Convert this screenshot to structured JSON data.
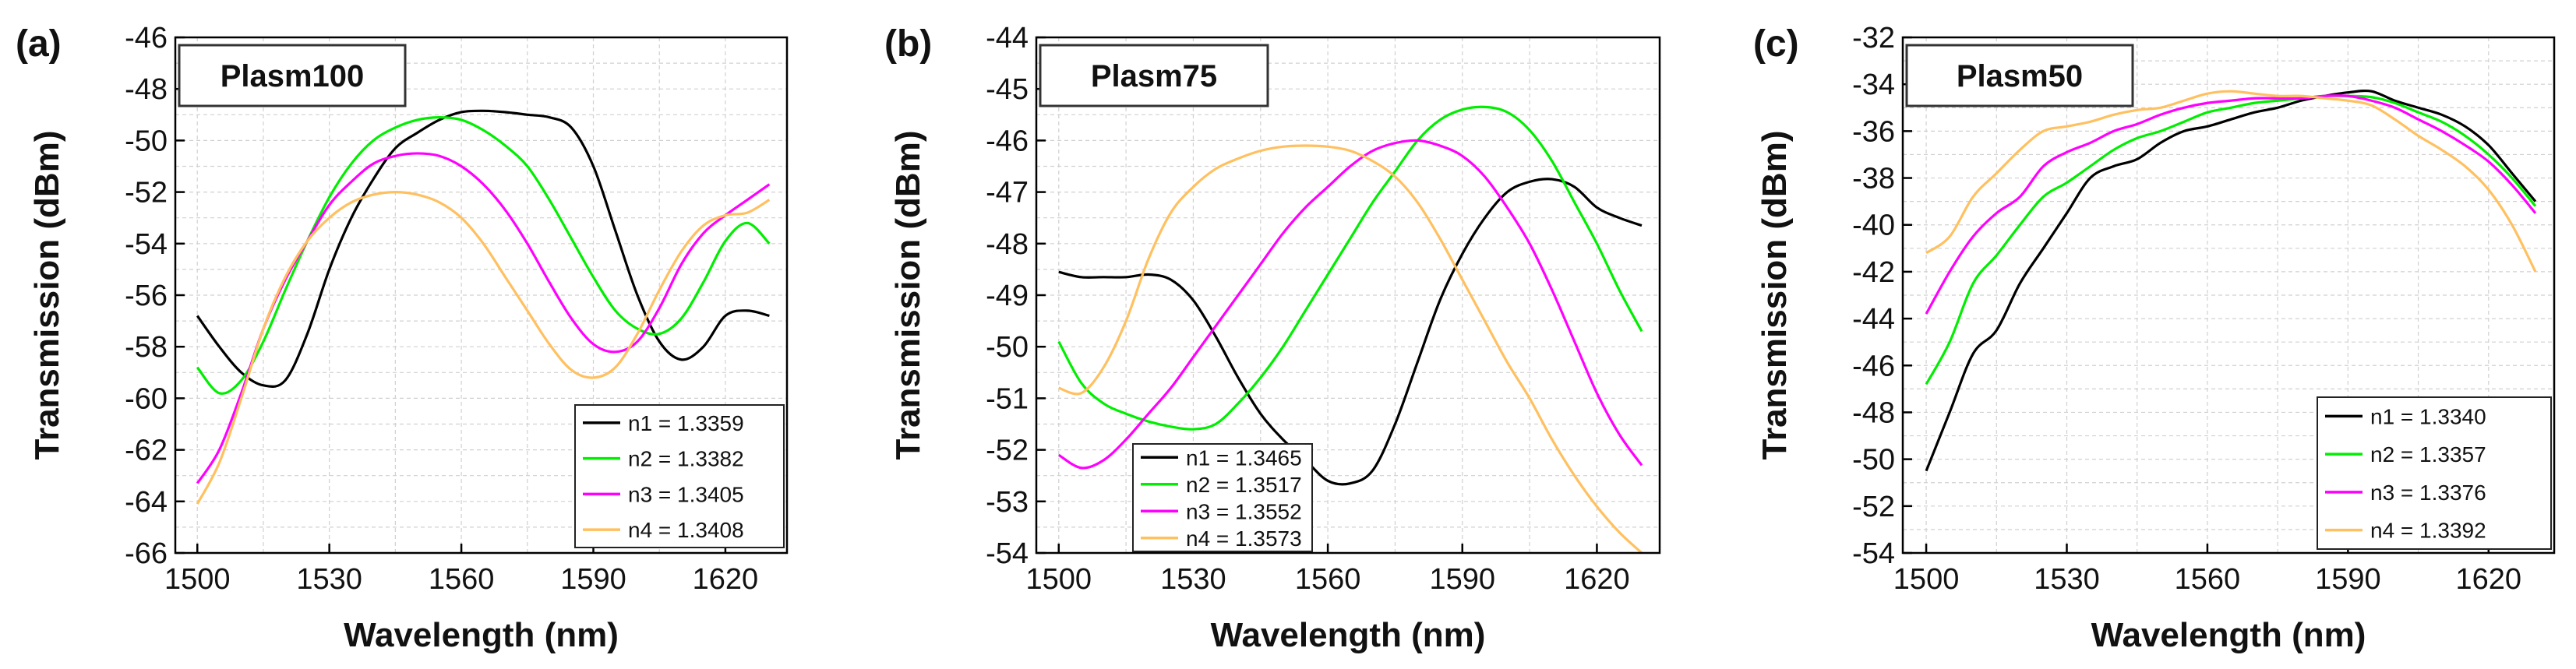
{
  "figure": {
    "panel_count": 3
  },
  "chart_data": [
    {
      "type": "line",
      "panel_label": "(a)",
      "title": "Plasm100",
      "xlabel": "Wavelength (nm)",
      "ylabel": "Transmission (dBm)",
      "xlim": [
        1495,
        1634
      ],
      "ylim": [
        -66,
        -46
      ],
      "xticks": [
        1500,
        1530,
        1560,
        1590,
        1620
      ],
      "yticks": [
        -66,
        -64,
        -62,
        -60,
        -58,
        -56,
        -54,
        -52,
        -50,
        -48,
        -46
      ],
      "legend_position": "bottom-right",
      "series": [
        {
          "name": "n1 = 1.3359",
          "color": "#000000",
          "x": [
            1500,
            1505,
            1510,
            1515,
            1520,
            1525,
            1530,
            1535,
            1540,
            1545,
            1550,
            1555,
            1560,
            1565,
            1570,
            1575,
            1580,
            1585,
            1590,
            1595,
            1600,
            1605,
            1610,
            1615,
            1620,
            1625,
            1630
          ],
          "y": [
            -56.8,
            -58.0,
            -59.0,
            -59.5,
            -59.3,
            -57.5,
            -55.0,
            -53.0,
            -51.5,
            -50.3,
            -49.7,
            -49.2,
            -48.9,
            -48.85,
            -48.9,
            -49.0,
            -49.1,
            -49.5,
            -51.0,
            -53.5,
            -56.0,
            -57.8,
            -58.5,
            -58.0,
            -56.8,
            -56.6,
            -56.8
          ]
        },
        {
          "name": "n2 = 1.3382",
          "color": "#00ee00",
          "x": [
            1500,
            1505,
            1510,
            1515,
            1520,
            1525,
            1530,
            1535,
            1540,
            1545,
            1550,
            1555,
            1560,
            1565,
            1570,
            1575,
            1580,
            1585,
            1590,
            1595,
            1600,
            1605,
            1610,
            1615,
            1620,
            1625,
            1630
          ],
          "y": [
            -58.8,
            -59.8,
            -59.3,
            -57.8,
            -55.8,
            -53.9,
            -52.2,
            -50.9,
            -50.0,
            -49.5,
            -49.2,
            -49.1,
            -49.2,
            -49.6,
            -50.2,
            -51.0,
            -52.3,
            -53.8,
            -55.3,
            -56.6,
            -57.3,
            -57.5,
            -56.9,
            -55.5,
            -53.9,
            -53.2,
            -54.0
          ]
        },
        {
          "name": "n3 = 1.3405",
          "color": "#ff00ff",
          "x": [
            1500,
            1505,
            1510,
            1515,
            1520,
            1525,
            1530,
            1535,
            1540,
            1545,
            1550,
            1555,
            1560,
            1565,
            1570,
            1575,
            1580,
            1585,
            1590,
            1595,
            1600,
            1605,
            1610,
            1615,
            1620,
            1625,
            1630
          ],
          "y": [
            -63.3,
            -62.0,
            -59.8,
            -57.3,
            -55.4,
            -53.9,
            -52.5,
            -51.6,
            -50.9,
            -50.6,
            -50.5,
            -50.6,
            -51.0,
            -51.7,
            -52.7,
            -54.0,
            -55.5,
            -56.9,
            -57.9,
            -58.2,
            -57.8,
            -56.5,
            -54.8,
            -53.6,
            -52.9,
            -52.3,
            -51.7
          ]
        },
        {
          "name": "n4 = 1.3408",
          "color": "#ffc060",
          "x": [
            1500,
            1505,
            1510,
            1515,
            1520,
            1525,
            1530,
            1535,
            1540,
            1545,
            1550,
            1555,
            1560,
            1565,
            1570,
            1575,
            1580,
            1585,
            1590,
            1595,
            1600,
            1605,
            1610,
            1615,
            1620,
            1625,
            1630
          ],
          "y": [
            -64.1,
            -62.5,
            -60.0,
            -57.3,
            -55.3,
            -53.9,
            -53.0,
            -52.4,
            -52.1,
            -52.0,
            -52.1,
            -52.4,
            -53.0,
            -54.0,
            -55.3,
            -56.6,
            -57.9,
            -58.9,
            -59.2,
            -58.8,
            -57.5,
            -55.8,
            -54.3,
            -53.3,
            -52.9,
            -52.8,
            -52.3
          ]
        }
      ]
    },
    {
      "type": "line",
      "panel_label": "(b)",
      "title": "Plasm75",
      "xlabel": "Wavelength (nm)",
      "ylabel": "Transmission (dBm)",
      "xlim": [
        1495,
        1634
      ],
      "ylim": [
        -54,
        -44
      ],
      "xticks": [
        1500,
        1530,
        1560,
        1590,
        1620
      ],
      "yticks": [
        -54,
        -53,
        -52,
        -51,
        -50,
        -49,
        -48,
        -47,
        -46,
        -45,
        -44
      ],
      "legend_position": "bottom-left",
      "series": [
        {
          "name": "n1 = 1.3465",
          "color": "#000000",
          "x": [
            1500,
            1505,
            1510,
            1515,
            1520,
            1525,
            1530,
            1535,
            1540,
            1545,
            1550,
            1555,
            1560,
            1565,
            1570,
            1575,
            1580,
            1585,
            1590,
            1595,
            1600,
            1605,
            1610,
            1615,
            1620,
            1625,
            1630
          ],
          "y": [
            -48.55,
            -48.65,
            -48.65,
            -48.65,
            -48.6,
            -48.7,
            -49.1,
            -49.8,
            -50.6,
            -51.3,
            -51.8,
            -52.2,
            -52.6,
            -52.65,
            -52.4,
            -51.5,
            -50.3,
            -49.1,
            -48.2,
            -47.5,
            -47.0,
            -46.8,
            -46.75,
            -46.9,
            -47.3,
            -47.5,
            -47.65
          ]
        },
        {
          "name": "n2 = 1.3517",
          "color": "#00ee00",
          "x": [
            1500,
            1505,
            1510,
            1515,
            1520,
            1525,
            1530,
            1535,
            1540,
            1545,
            1550,
            1555,
            1560,
            1565,
            1570,
            1575,
            1580,
            1585,
            1590,
            1595,
            1600,
            1605,
            1610,
            1615,
            1620,
            1625,
            1630
          ],
          "y": [
            -49.9,
            -50.7,
            -51.1,
            -51.3,
            -51.45,
            -51.55,
            -51.6,
            -51.5,
            -51.1,
            -50.6,
            -50.0,
            -49.3,
            -48.6,
            -47.9,
            -47.2,
            -46.6,
            -46.0,
            -45.6,
            -45.4,
            -45.35,
            -45.45,
            -45.8,
            -46.4,
            -47.2,
            -48.0,
            -48.9,
            -49.7
          ]
        },
        {
          "name": "n3 = 1.3552",
          "color": "#ff00ff",
          "x": [
            1500,
            1505,
            1510,
            1515,
            1520,
            1525,
            1530,
            1535,
            1540,
            1545,
            1550,
            1555,
            1560,
            1565,
            1570,
            1575,
            1580,
            1585,
            1590,
            1595,
            1600,
            1605,
            1610,
            1615,
            1620,
            1625,
            1630
          ],
          "y": [
            -52.1,
            -52.35,
            -52.2,
            -51.8,
            -51.3,
            -50.8,
            -50.2,
            -49.6,
            -49.0,
            -48.4,
            -47.8,
            -47.3,
            -46.9,
            -46.5,
            -46.2,
            -46.05,
            -46.0,
            -46.1,
            -46.3,
            -46.7,
            -47.3,
            -48.0,
            -48.9,
            -49.9,
            -50.9,
            -51.7,
            -52.3
          ]
        },
        {
          "name": "n4 = 1.3573",
          "color": "#ffc060",
          "x": [
            1500,
            1505,
            1510,
            1515,
            1520,
            1525,
            1530,
            1535,
            1540,
            1545,
            1550,
            1555,
            1560,
            1565,
            1570,
            1575,
            1580,
            1585,
            1590,
            1595,
            1600,
            1605,
            1610,
            1615,
            1620,
            1625,
            1630
          ],
          "y": [
            -50.8,
            -50.9,
            -50.4,
            -49.5,
            -48.3,
            -47.4,
            -46.9,
            -46.55,
            -46.35,
            -46.2,
            -46.12,
            -46.1,
            -46.12,
            -46.2,
            -46.4,
            -46.7,
            -47.2,
            -47.9,
            -48.7,
            -49.5,
            -50.3,
            -51.0,
            -51.8,
            -52.5,
            -53.1,
            -53.6,
            -54.0
          ]
        }
      ]
    },
    {
      "type": "line",
      "panel_label": "(c)",
      "title": "Plasm50",
      "xlabel": "Wavelength (nm)",
      "ylabel": "Transmission (dBm)",
      "xlim": [
        1495,
        1634
      ],
      "ylim": [
        -54,
        -32
      ],
      "xticks": [
        1500,
        1530,
        1560,
        1590,
        1620
      ],
      "yticks": [
        -54,
        -52,
        -50,
        -48,
        -46,
        -44,
        -42,
        -40,
        -38,
        -36,
        -34,
        -32
      ],
      "legend_position": "bottom-right",
      "series": [
        {
          "name": "n1 = 1.3340",
          "color": "#000000",
          "x": [
            1500,
            1505,
            1510,
            1515,
            1520,
            1525,
            1530,
            1535,
            1540,
            1545,
            1550,
            1555,
            1560,
            1565,
            1570,
            1575,
            1580,
            1585,
            1590,
            1595,
            1600,
            1605,
            1610,
            1615,
            1620,
            1625,
            1630
          ],
          "y": [
            -50.5,
            -48.0,
            -45.5,
            -44.5,
            -42.5,
            -41.0,
            -39.5,
            -38.0,
            -37.5,
            -37.2,
            -36.5,
            -36.0,
            -35.8,
            -35.5,
            -35.2,
            -35.0,
            -34.7,
            -34.5,
            -34.35,
            -34.3,
            -34.7,
            -35.0,
            -35.3,
            -35.8,
            -36.6,
            -37.8,
            -39.0
          ]
        },
        {
          "name": "n2 = 1.3357",
          "color": "#00ee00",
          "x": [
            1500,
            1505,
            1510,
            1515,
            1520,
            1525,
            1530,
            1535,
            1540,
            1545,
            1550,
            1555,
            1560,
            1565,
            1570,
            1575,
            1580,
            1585,
            1590,
            1595,
            1600,
            1605,
            1610,
            1615,
            1620,
            1625,
            1630
          ],
          "y": [
            -46.8,
            -45.0,
            -42.5,
            -41.3,
            -40.0,
            -38.8,
            -38.2,
            -37.5,
            -36.8,
            -36.3,
            -36.0,
            -35.6,
            -35.2,
            -35.0,
            -34.8,
            -34.7,
            -34.6,
            -34.5,
            -34.5,
            -34.55,
            -34.8,
            -35.2,
            -35.6,
            -36.2,
            -37.0,
            -38.0,
            -39.2
          ]
        },
        {
          "name": "n3 = 1.3376",
          "color": "#ff00ff",
          "x": [
            1500,
            1505,
            1510,
            1515,
            1520,
            1525,
            1530,
            1535,
            1540,
            1545,
            1550,
            1555,
            1560,
            1565,
            1570,
            1575,
            1580,
            1585,
            1590,
            1595,
            1600,
            1605,
            1610,
            1615,
            1620,
            1625,
            1630
          ],
          "y": [
            -43.8,
            -42.0,
            -40.5,
            -39.5,
            -38.8,
            -37.5,
            -36.9,
            -36.5,
            -36.0,
            -35.7,
            -35.3,
            -35.0,
            -34.8,
            -34.7,
            -34.6,
            -34.6,
            -34.6,
            -34.5,
            -34.5,
            -34.7,
            -35.0,
            -35.5,
            -36.0,
            -36.6,
            -37.3,
            -38.3,
            -39.5
          ]
        },
        {
          "name": "n4 = 1.3392",
          "color": "#ffc060",
          "x": [
            1500,
            1505,
            1510,
            1515,
            1520,
            1525,
            1530,
            1535,
            1540,
            1545,
            1550,
            1555,
            1560,
            1565,
            1570,
            1575,
            1580,
            1585,
            1590,
            1595,
            1600,
            1605,
            1610,
            1615,
            1620,
            1625,
            1630
          ],
          "y": [
            -41.2,
            -40.5,
            -38.8,
            -37.8,
            -36.8,
            -36.0,
            -35.8,
            -35.6,
            -35.3,
            -35.1,
            -35.0,
            -34.7,
            -34.4,
            -34.3,
            -34.4,
            -34.5,
            -34.5,
            -34.6,
            -34.7,
            -34.9,
            -35.5,
            -36.2,
            -36.8,
            -37.5,
            -38.5,
            -40.0,
            -42.0
          ]
        }
      ]
    }
  ]
}
